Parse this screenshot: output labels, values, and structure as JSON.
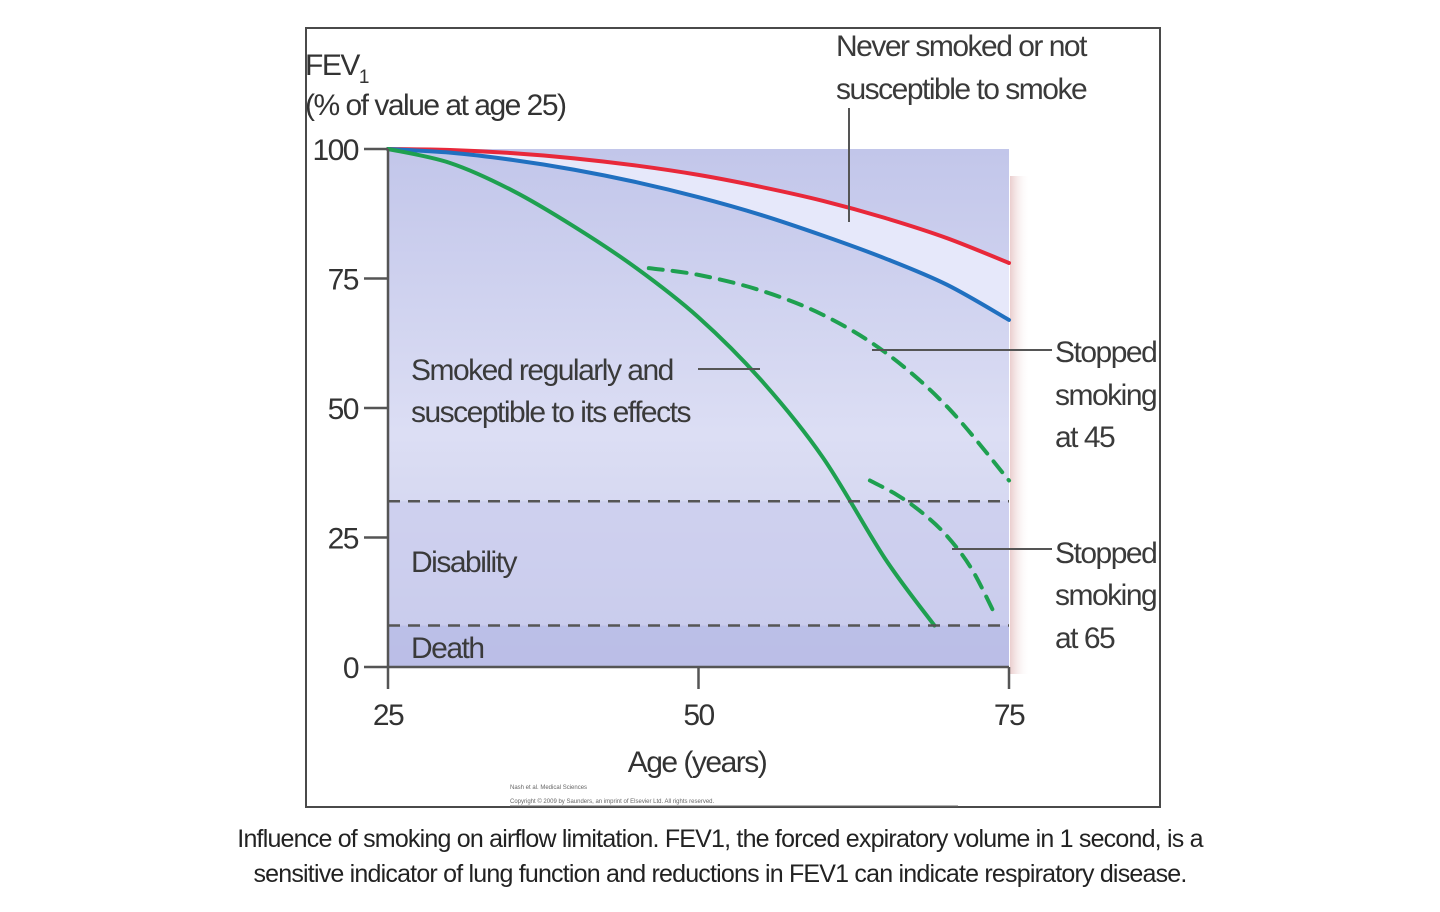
{
  "chart_data": {
    "type": "line",
    "ylabel_main": "FEV",
    "ylabel_subscript": "1",
    "ylabel_line2": "(% of value at age 25)",
    "xlabel": "Age (years)",
    "x_ticks": [
      25,
      50,
      75
    ],
    "y_ticks": [
      0,
      25,
      50,
      75,
      100
    ],
    "xlim": [
      25,
      75
    ],
    "ylim": [
      0,
      100
    ],
    "zones": [
      {
        "name": "Disability",
        "threshold": 32
      },
      {
        "name": "Death",
        "threshold": 8
      }
    ],
    "series": [
      {
        "name": "Never smoked or not susceptible to smoke",
        "color": "#e8283a",
        "style": "solid",
        "x": [
          25,
          30,
          35,
          40,
          45,
          50,
          55,
          60,
          65,
          70,
          75
        ],
        "y": [
          100,
          99.8,
          99.2,
          98.2,
          96.8,
          95.0,
          92.7,
          90.0,
          86.7,
          82.8,
          78.0
        ]
      },
      {
        "name": "",
        "color": "#2070c0",
        "style": "solid",
        "x": [
          25,
          30,
          35,
          40,
          45,
          50,
          55,
          60,
          65,
          70,
          75
        ],
        "y": [
          100,
          99.3,
          97.9,
          96.0,
          93.6,
          90.7,
          87.3,
          83.3,
          78.9,
          73.8,
          67.0
        ]
      },
      {
        "name": "Smoked regularly and susceptible to its effects",
        "color": "#1ea050",
        "style": "solid",
        "x": [
          25,
          30,
          35,
          40,
          45,
          50,
          55,
          60,
          65,
          69
        ],
        "y": [
          100,
          97.3,
          92.0,
          85.0,
          77.0,
          67.5,
          55.5,
          40.5,
          21.0,
          8.0
        ]
      },
      {
        "name": "Stopped smoking at 45",
        "color": "#1ea050",
        "style": "dashed",
        "x": [
          46,
          50,
          55,
          60,
          65,
          70,
          75
        ],
        "y": [
          77.0,
          75.7,
          72.7,
          68.0,
          60.8,
          50.3,
          36.0
        ]
      },
      {
        "name": "Stopped smoking at 65",
        "color": "#1ea050",
        "style": "dashed",
        "x": [
          63.8,
          66,
          68,
          70,
          72,
          74
        ],
        "y": [
          36.0,
          33.2,
          29.8,
          25.3,
          18.9,
          9.5
        ]
      }
    ],
    "annotations": {
      "never_smoked": [
        "Never smoked or not",
        "susceptible to smoke"
      ],
      "smoked_regularly": [
        "Smoked regularly and",
        "susceptible to its effects"
      ],
      "stopped_45": [
        "Stopped",
        "smoking",
        "at 45"
      ],
      "stopped_65": [
        "Stopped",
        "smoking",
        "at 65"
      ],
      "disability": "Disability",
      "death": "Death"
    },
    "credit": [
      "Nash et al. Medical Sciences",
      "Copyright © 2009 by Saunders, an imprint of Elsevier Ltd. All rights reserved."
    ]
  },
  "caption": {
    "line1": "Influence of smoking on airflow limitation. FEV1, the forced expiratory volume in 1 second, is a",
    "line2": "sensitive indicator of lung function and reductions in FEV1 can indicate respiratory disease."
  }
}
